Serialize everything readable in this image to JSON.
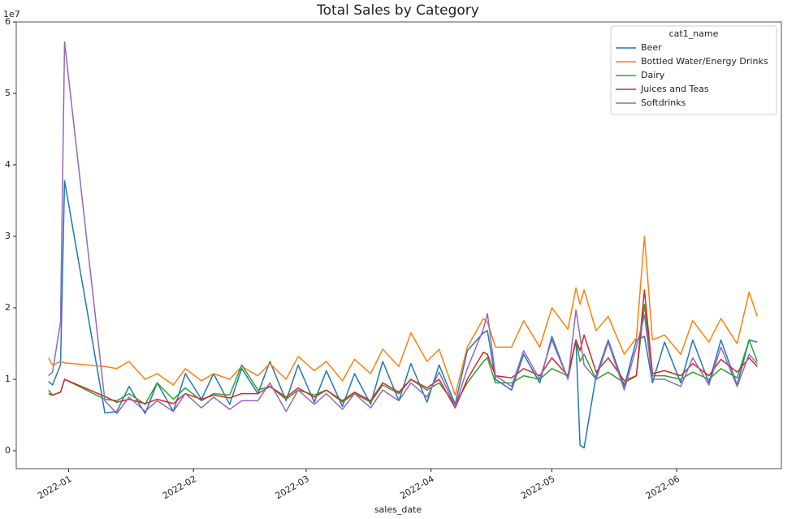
{
  "chart_data": {
    "type": "line",
    "title": "Total Sales by Category",
    "x_label": "sales_date",
    "y_offset_label": "1e7",
    "legend_title": "cat1_name",
    "legend": "upper right",
    "x": [
      18988,
      18989,
      18991,
      18992,
      19002,
      19005,
      19008,
      19012,
      19015,
      19019,
      19022,
      19026,
      19029,
      19033,
      19036,
      19040,
      19043,
      19047,
      19050,
      19054,
      19057,
      19061,
      19064,
      19068,
      19071,
      19075,
      19078,
      19082,
      19085,
      19089,
      19092,
      19096,
      19097,
      19099,
      19103,
      19106,
      19110,
      19113,
      19117,
      19119,
      19120,
      19121,
      19124,
      19127,
      19131,
      19134,
      19136,
      19138,
      19141,
      19145,
      19148,
      19152,
      19155,
      19159,
      19162,
      19164
    ],
    "series": [
      {
        "name": "Beer",
        "color": "#1f77b4",
        "values": [
          0.97,
          0.92,
          1.2,
          3.78,
          0.53,
          0.55,
          0.9,
          0.52,
          0.95,
          0.55,
          1.08,
          0.72,
          1.08,
          0.65,
          1.15,
          0.8,
          1.25,
          0.7,
          1.2,
          0.68,
          1.12,
          0.62,
          1.08,
          0.65,
          1.25,
          0.7,
          1.22,
          0.68,
          1.2,
          0.65,
          1.4,
          1.65,
          1.68,
          1.0,
          0.85,
          1.35,
          0.95,
          1.6,
          1.0,
          1.55,
          0.08,
          0.04,
          1.05,
          1.55,
          0.9,
          1.55,
          1.6,
          0.95,
          1.52,
          0.95,
          1.55,
          0.95,
          1.55,
          0.92,
          1.55,
          1.52
        ]
      },
      {
        "name": "Bottled Water/Energy Drinks",
        "color": "#ff7f0e",
        "values": [
          1.3,
          1.2,
          1.25,
          1.23,
          1.18,
          1.15,
          1.25,
          1.0,
          1.08,
          0.92,
          1.15,
          0.98,
          1.08,
          1.0,
          1.18,
          1.05,
          1.22,
          1.0,
          1.32,
          1.12,
          1.25,
          0.98,
          1.28,
          1.08,
          1.42,
          1.18,
          1.65,
          1.25,
          1.42,
          0.78,
          1.45,
          1.85,
          1.8,
          1.45,
          1.45,
          1.82,
          1.45,
          2.0,
          1.7,
          2.28,
          2.05,
          2.25,
          1.68,
          1.88,
          1.35,
          1.58,
          3.0,
          1.55,
          1.62,
          1.35,
          1.82,
          1.52,
          1.85,
          1.5,
          2.22,
          1.88
        ]
      },
      {
        "name": "Dairy",
        "color": "#2ca02c",
        "values": [
          0.85,
          0.78,
          0.82,
          1.0,
          0.72,
          0.7,
          0.8,
          0.65,
          0.95,
          0.72,
          0.88,
          0.7,
          0.8,
          0.78,
          1.2,
          0.85,
          0.9,
          0.72,
          0.85,
          0.78,
          0.85,
          0.68,
          0.8,
          0.68,
          0.92,
          0.8,
          1.0,
          0.85,
          0.95,
          0.65,
          0.95,
          1.25,
          1.3,
          0.95,
          0.95,
          1.05,
          1.0,
          1.15,
          1.05,
          1.55,
          1.25,
          1.35,
          1.0,
          1.1,
          0.95,
          1.05,
          2.05,
          1.05,
          1.05,
          1.0,
          1.1,
          1.0,
          1.15,
          1.02,
          1.55,
          1.25
        ]
      },
      {
        "name": "Juices and Teas",
        "color": "#d62728",
        "values": [
          0.8,
          0.78,
          0.82,
          1.0,
          0.76,
          0.68,
          0.72,
          0.66,
          0.72,
          0.66,
          0.8,
          0.72,
          0.78,
          0.74,
          0.8,
          0.8,
          0.9,
          0.75,
          0.88,
          0.75,
          0.85,
          0.7,
          0.82,
          0.7,
          0.95,
          0.82,
          1.0,
          0.88,
          1.0,
          0.6,
          1.0,
          1.38,
          1.35,
          1.05,
          1.02,
          1.15,
          1.05,
          1.3,
          1.05,
          1.55,
          1.4,
          1.62,
          1.1,
          1.3,
          0.98,
          1.05,
          2.25,
          1.08,
          1.12,
          1.05,
          1.22,
          1.05,
          1.28,
          1.1,
          1.3,
          1.18
        ]
      },
      {
        "name": "Softdrinks",
        "color": "#9467bd",
        "values": [
          1.05,
          1.1,
          1.8,
          5.72,
          0.7,
          0.52,
          0.75,
          0.55,
          0.7,
          0.55,
          0.8,
          0.6,
          0.75,
          0.58,
          0.7,
          0.7,
          0.95,
          0.55,
          0.85,
          0.65,
          0.8,
          0.58,
          0.8,
          0.6,
          0.85,
          0.7,
          0.95,
          0.75,
          1.1,
          0.62,
          1.15,
          1.7,
          1.92,
          1.05,
          0.9,
          1.4,
          1.0,
          1.55,
          1.0,
          1.97,
          1.6,
          1.2,
          1.0,
          1.52,
          0.85,
          1.45,
          1.9,
          1.0,
          1.0,
          0.9,
          1.3,
          0.92,
          1.45,
          0.9,
          1.35,
          1.22
        ]
      }
    ],
    "xlim": [
      18980,
      19170
    ],
    "xticks": [
      {
        "value": 18993,
        "label": "2022-01"
      },
      {
        "value": 19024,
        "label": "2022-02"
      },
      {
        "value": 19052,
        "label": "2022-03"
      },
      {
        "value": 19083,
        "label": "2022-04"
      },
      {
        "value": 19113,
        "label": "2022-05"
      },
      {
        "value": 19144,
        "label": "2022-06"
      }
    ],
    "ylim": [
      -0.25,
      6.0
    ],
    "yticks": [
      0,
      1,
      2,
      3,
      4,
      5,
      6
    ],
    "grid": false
  }
}
